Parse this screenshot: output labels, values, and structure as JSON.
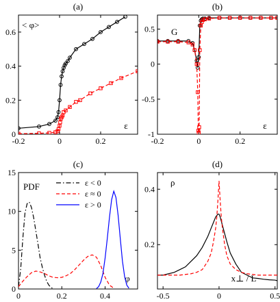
{
  "chart_data": [
    {
      "panel": "a",
      "type": "line",
      "title": "(a)",
      "ylabel": "< φ>",
      "xlabel": "ε",
      "xlim": [
        -0.2,
        0.38
      ],
      "ylim": [
        0,
        0.7
      ],
      "xticks": [
        -0.2,
        0,
        0.2
      ],
      "xtick_labels": [
        "-0.2",
        "0",
        "0.2"
      ],
      "yticks": [
        0,
        0.2,
        0.4,
        0.6
      ],
      "ytick_labels": [
        "0",
        "0.2",
        "0.4",
        "0.6"
      ],
      "series": [
        {
          "color": "#000000",
          "dash": "solid",
          "marker": "circle",
          "x": [
            -0.2,
            -0.1,
            -0.05,
            -0.02,
            -0.01,
            -0.005,
            0.0,
            0.005,
            0.01,
            0.015,
            0.02,
            0.025,
            0.03,
            0.04,
            0.05,
            0.08,
            0.12,
            0.16,
            0.2,
            0.24,
            0.28,
            0.32
          ],
          "y": [
            0.035,
            0.045,
            0.06,
            0.08,
            0.1,
            0.13,
            0.2,
            0.29,
            0.34,
            0.37,
            0.39,
            0.405,
            0.415,
            0.43,
            0.45,
            0.5,
            0.53,
            0.56,
            0.6,
            0.63,
            0.66,
            0.69
          ]
        },
        {
          "color": "#ff0000",
          "dash": "dashed",
          "marker": "square",
          "x": [
            -0.2,
            -0.1,
            -0.05,
            -0.02,
            -0.01,
            -0.005,
            0.0,
            0.003,
            0.006,
            0.01,
            0.015,
            0.02,
            0.03,
            0.05,
            0.08,
            0.1,
            0.15,
            0.2,
            0.25,
            0.3,
            0.38
          ],
          "y": [
            0.003,
            0.005,
            0.008,
            0.012,
            0.018,
            0.03,
            0.05,
            0.07,
            0.09,
            0.1,
            0.11,
            0.13,
            0.14,
            0.16,
            0.19,
            0.2,
            0.24,
            0.27,
            0.3,
            0.33,
            0.37
          ]
        }
      ]
    },
    {
      "panel": "b",
      "type": "line",
      "title": "(b)",
      "ylabel": "G",
      "xlabel": "ε",
      "xlim": [
        -0.2,
        0.38
      ],
      "ylim": [
        -1,
        0.7
      ],
      "xticks": [
        -0.2,
        0,
        0.2
      ],
      "xtick_labels": [
        "-0.2",
        "0",
        "0.2"
      ],
      "yticks": [
        -1,
        -0.5,
        0,
        0.5
      ],
      "ytick_labels": [
        "-1",
        "-0.5",
        "0",
        "0.5"
      ],
      "series": [
        {
          "color": "#000000",
          "dash": "solid",
          "marker": "circle",
          "x": [
            -0.2,
            -0.15,
            -0.1,
            -0.05,
            -0.03,
            -0.02,
            -0.01,
            -0.005,
            0.0,
            0.005,
            0.01,
            0.015,
            0.02,
            0.03,
            0.05,
            0.1,
            0.15,
            0.2,
            0.25,
            0.3,
            0.35,
            0.38
          ],
          "y": [
            0.33,
            0.33,
            0.33,
            0.33,
            0.3,
            0.2,
            0.05,
            -0.05,
            0.1,
            0.55,
            0.62,
            0.64,
            0.65,
            0.65,
            0.66,
            0.66,
            0.66,
            0.66,
            0.66,
            0.66,
            0.66,
            0.66
          ]
        },
        {
          "color": "#ff0000",
          "dash": "dashed",
          "marker": "square",
          "x": [
            -0.2,
            -0.15,
            -0.1,
            -0.05,
            -0.03,
            -0.02,
            -0.01,
            -0.005,
            -0.002,
            0.0,
            0.002,
            0.005,
            0.01,
            0.015,
            0.02,
            0.03,
            0.05,
            0.1,
            0.15,
            0.2,
            0.25,
            0.3,
            0.35,
            0.38
          ],
          "y": [
            0.32,
            0.32,
            0.32,
            0.31,
            0.28,
            0.2,
            0.0,
            -0.4,
            -0.95,
            -0.98,
            -0.9,
            0.2,
            0.55,
            0.6,
            0.63,
            0.64,
            0.65,
            0.66,
            0.66,
            0.66,
            0.66,
            0.66,
            0.66,
            0.66
          ]
        }
      ]
    },
    {
      "panel": "c",
      "type": "line",
      "title": "(c)",
      "ylabel": "PDF",
      "xlabel": "φ",
      "xlim": [
        0,
        0.55
      ],
      "ylim": [
        0,
        15
      ],
      "xticks": [
        0,
        0.2,
        0.4
      ],
      "xtick_labels": [
        "0",
        "0.2",
        "0.4"
      ],
      "yticks": [
        0,
        5,
        10,
        15
      ],
      "ytick_labels": [
        "0",
        "5",
        "10",
        "15"
      ],
      "legend": [
        "ε < 0",
        "ε ≈ 0",
        "ε > 0"
      ],
      "legend_position": "top-right",
      "series": [
        {
          "name": "ε < 0",
          "color": "#000000",
          "dash": "dashdot",
          "x": [
            0.0,
            0.01,
            0.02,
            0.03,
            0.04,
            0.05,
            0.06,
            0.07,
            0.08,
            0.09,
            0.1,
            0.11,
            0.12,
            0.13,
            0.14,
            0.15,
            0.16
          ],
          "y": [
            0.3,
            2.5,
            6.5,
            9.8,
            11.0,
            11.2,
            10.5,
            9.2,
            7.5,
            5.8,
            4.0,
            2.8,
            1.8,
            1.0,
            0.5,
            0.2,
            0.05
          ]
        },
        {
          "name": "ε ≈ 0",
          "color": "#ff0000",
          "dash": "dashed",
          "x": [
            0.0,
            0.02,
            0.04,
            0.06,
            0.08,
            0.1,
            0.12,
            0.14,
            0.16,
            0.18,
            0.2,
            0.22,
            0.24,
            0.26,
            0.28,
            0.3,
            0.32,
            0.34,
            0.36,
            0.38,
            0.4,
            0.42,
            0.44
          ],
          "y": [
            0.3,
            1.0,
            1.6,
            2.1,
            2.3,
            2.2,
            2.0,
            1.7,
            1.5,
            1.45,
            1.5,
            1.7,
            2.0,
            2.5,
            3.1,
            3.7,
            4.2,
            4.4,
            4.1,
            3.0,
            1.5,
            0.5,
            0.1
          ]
        },
        {
          "name": "ε > 0",
          "color": "#0000ff",
          "dash": "solid",
          "x": [
            0.36,
            0.37,
            0.38,
            0.39,
            0.4,
            0.41,
            0.42,
            0.43,
            0.44,
            0.45,
            0.46,
            0.47,
            0.48,
            0.49,
            0.5,
            0.51
          ],
          "y": [
            0.05,
            0.3,
            0.9,
            2.0,
            4.0,
            6.5,
            9.2,
            11.5,
            12.6,
            11.8,
            9.5,
            6.5,
            3.6,
            1.6,
            0.5,
            0.1
          ]
        }
      ]
    },
    {
      "panel": "d",
      "type": "line",
      "title": "(d)",
      "ylabel": "ρ",
      "xlabel": "x⊥ / L",
      "xlim": [
        -0.55,
        0.52
      ],
      "ylim": [
        0.04,
        0.46
      ],
      "xticks": [
        -0.5,
        0,
        0.5
      ],
      "xtick_labels": [
        "-0.5",
        "0",
        "0.5"
      ],
      "yticks": [
        0.2,
        0.4
      ],
      "ytick_labels": [
        "0.2",
        "0.4"
      ],
      "series": [
        {
          "color": "#000000",
          "dash": "solid",
          "x": [
            -0.55,
            -0.5,
            -0.45,
            -0.4,
            -0.35,
            -0.3,
            -0.25,
            -0.2,
            -0.15,
            -0.1,
            -0.07,
            -0.05,
            -0.03,
            -0.01,
            0.0,
            0.01,
            0.03,
            0.05,
            0.07,
            0.1,
            0.15,
            0.2,
            0.25,
            0.3,
            0.35,
            0.4,
            0.45,
            0.5,
            0.52
          ],
          "y": [
            0.09,
            0.09,
            0.095,
            0.1,
            0.11,
            0.12,
            0.14,
            0.16,
            0.19,
            0.23,
            0.26,
            0.28,
            0.3,
            0.31,
            0.31,
            0.3,
            0.27,
            0.24,
            0.21,
            0.17,
            0.13,
            0.1,
            0.09,
            0.08,
            0.078,
            0.075,
            0.073,
            0.072,
            0.07
          ]
        },
        {
          "color": "#ff0000",
          "dash": "dashed",
          "x": [
            -0.55,
            -0.45,
            -0.35,
            -0.25,
            -0.2,
            -0.15,
            -0.1,
            -0.07,
            -0.05,
            -0.03,
            -0.02,
            -0.01,
            0.0,
            0.01,
            0.02,
            0.03,
            0.05,
            0.07,
            0.1,
            0.15,
            0.2,
            0.25,
            0.35,
            0.45,
            0.52
          ],
          "y": [
            0.09,
            0.09,
            0.09,
            0.095,
            0.1,
            0.11,
            0.14,
            0.17,
            0.21,
            0.26,
            0.3,
            0.36,
            0.43,
            0.36,
            0.3,
            0.26,
            0.2,
            0.16,
            0.13,
            0.11,
            0.1,
            0.095,
            0.09,
            0.09,
            0.09
          ]
        }
      ]
    }
  ]
}
